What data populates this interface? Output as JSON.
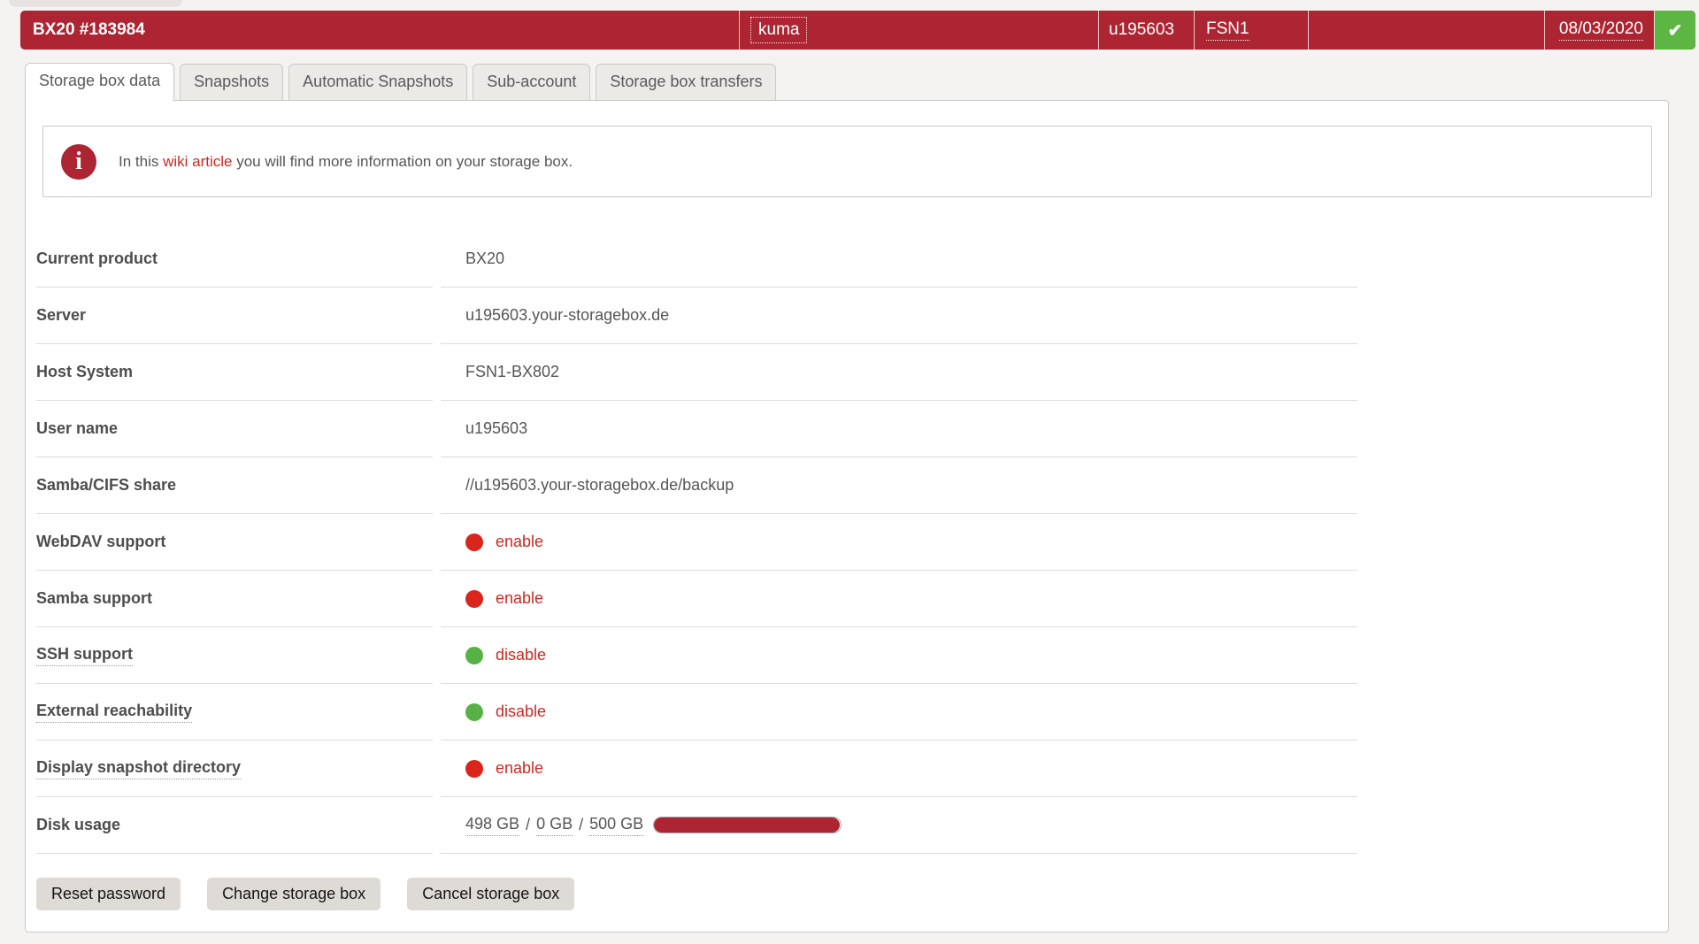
{
  "header": {
    "title": "BX20 #183984",
    "name": "kuma",
    "username": "u195603",
    "datacenter": "FSN1",
    "date": "08/03/2020",
    "confirm_glyph": "✔"
  },
  "tabs": [
    {
      "label": "Storage box data",
      "active": true
    },
    {
      "label": "Snapshots",
      "active": false
    },
    {
      "label": "Automatic Snapshots",
      "active": false
    },
    {
      "label": "Sub-account",
      "active": false
    },
    {
      "label": "Storage box transfers",
      "active": false
    }
  ],
  "info": {
    "icon_glyph": "i",
    "text_before": "In this ",
    "link": "wiki article",
    "text_after": " you will find more information on your storage box."
  },
  "table": {
    "rows": [
      {
        "label": "Current product",
        "type": "text",
        "value": "BX20"
      },
      {
        "label": "Server",
        "type": "text",
        "value": "u195603.your-storagebox.de"
      },
      {
        "label": "Host System",
        "type": "text",
        "value": "FSN1-BX802"
      },
      {
        "label": "User name",
        "type": "text",
        "value": "u195603"
      },
      {
        "label": "Samba/CIFS share",
        "type": "text",
        "value": "//u195603.your-storagebox.de/backup"
      },
      {
        "label": "WebDAV support",
        "type": "status",
        "dot": "red",
        "action": "enable"
      },
      {
        "label": "Samba support",
        "type": "status",
        "dot": "red",
        "action": "enable"
      },
      {
        "label": "SSH support",
        "type": "status",
        "dot": "green",
        "action": "disable",
        "label_tooltip": true
      },
      {
        "label": "External reachability",
        "type": "status",
        "dot": "green",
        "action": "disable",
        "label_tooltip": true
      },
      {
        "label": "Display snapshot directory",
        "type": "status",
        "dot": "red",
        "action": "enable",
        "label_tooltip": true
      },
      {
        "label": "Disk usage",
        "type": "usage",
        "used": "498 GB",
        "snapshots": "0 GB",
        "total": "500 GB",
        "separator": "/",
        "percent": 99.6
      }
    ]
  },
  "buttons": [
    {
      "label": "Reset password"
    },
    {
      "label": "Change storage box"
    },
    {
      "label": "Cancel storage box"
    }
  ],
  "colors": {
    "header_red": "#ad2532",
    "confirm_green": "#5db544",
    "status_red": "#da251d",
    "status_green": "#57b246",
    "link_red": "#c92a21",
    "bar_fill": "#ad2532"
  }
}
